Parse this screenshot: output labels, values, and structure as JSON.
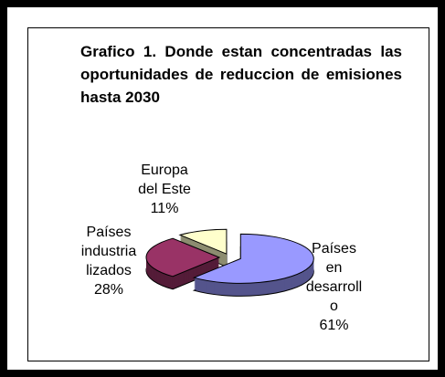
{
  "chart_data": {
    "type": "pie",
    "title": "Grafico 1. Donde estan concentradas las oportunidades de reduccion de emisiones hasta 2030",
    "categories": [
      "Europa del Este",
      "Países industrializados",
      "Países en desarrollo"
    ],
    "values": [
      11,
      28,
      61
    ],
    "value_labels": [
      "11%",
      "28%",
      "61%"
    ],
    "colors": [
      "#ffffcc",
      "#993366",
      "#9999ff"
    ]
  }
}
